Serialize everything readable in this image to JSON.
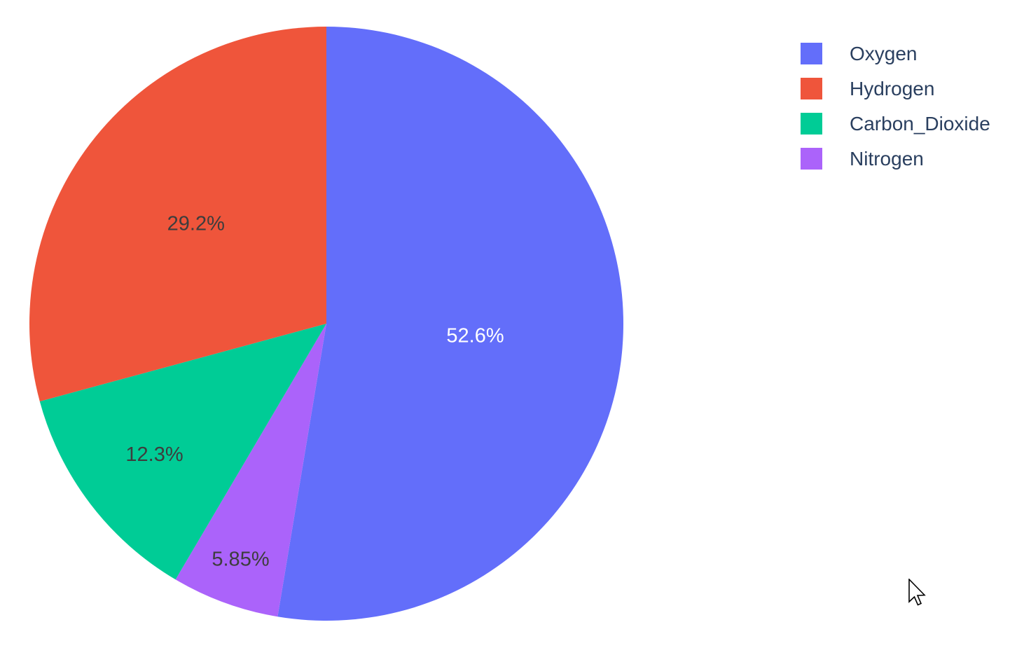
{
  "chart_data": {
    "type": "pie",
    "title": "",
    "background_color": "#FFFFFF",
    "labels": [
      "Oxygen",
      "Hydrogen",
      "Carbon_Dioxide",
      "Nitrogen"
    ],
    "values": [
      52.6,
      29.2,
      12.3,
      5.85
    ],
    "slice_labels": [
      "52.6%",
      "29.2%",
      "12.3%",
      "5.85%"
    ],
    "colors": [
      "#636EFA",
      "#EF553B",
      "#00CC96",
      "#AB63FA"
    ],
    "slice_text_colors": [
      "#FFFFFF",
      "#3D3D3D",
      "#3D3D3D",
      "#3D3D3D"
    ],
    "slice_label_position": "inside",
    "legend": {
      "position": "top-right",
      "text_color": "#2A3F5F",
      "entries": [
        {
          "label": "Oxygen",
          "color": "#636EFA"
        },
        {
          "label": "Hydrogen",
          "color": "#EF553B"
        },
        {
          "label": "Carbon_Dioxide",
          "color": "#00CC96"
        },
        {
          "label": "Nitrogen",
          "color": "#AB63FA"
        }
      ]
    }
  }
}
